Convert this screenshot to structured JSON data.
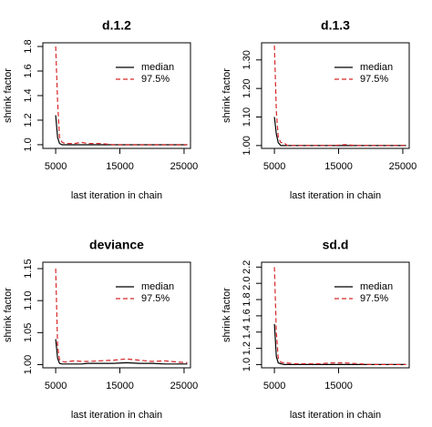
{
  "chart_data": [
    {
      "type": "line",
      "title": "d.1.2",
      "xlabel": "last iteration in chain",
      "ylabel": "shrink factor",
      "legend": "topright",
      "x": [
        5000,
        5300,
        5600,
        6000,
        6500,
        7000,
        8000,
        9000,
        10000,
        12000,
        14000,
        16000,
        18000,
        20000,
        22000,
        24000,
        25500
      ],
      "xlim": [
        3000,
        26000
      ],
      "xticks": [
        5000,
        15000,
        25000
      ],
      "ylim": [
        0.97,
        1.83
      ],
      "yticks": [
        {
          "value": 1,
          "label": "1.0"
        },
        1.2,
        1.4,
        1.6,
        1.8
      ],
      "series": [
        {
          "name": "median",
          "color": "#000000",
          "dash": false,
          "values": [
            1.24,
            1.06,
            1.01,
            1.0,
            1.0,
            1.0,
            1.0,
            1.0,
            1.0,
            1.0,
            1.0,
            1.0,
            1.0,
            1.0,
            1.0,
            1.0,
            1.0
          ]
        },
        {
          "name": "97.5%",
          "color": "#d62728",
          "dash": true,
          "values": [
            1.8,
            1.35,
            1.06,
            1.02,
            1.01,
            1.01,
            1.01,
            1.02,
            1.01,
            1.01,
            1.0,
            1.0,
            1.0,
            1.0,
            1.0,
            1.0,
            1.0
          ]
        }
      ]
    },
    {
      "type": "line",
      "title": "d.1.3",
      "xlabel": "last iteration in chain",
      "ylabel": "shrink factor",
      "legend": "topright",
      "x": [
        5000,
        5300,
        5600,
        6000,
        6500,
        7000,
        8000,
        9000,
        10000,
        12000,
        14000,
        16000,
        18000,
        20000,
        22000,
        24000,
        25500
      ],
      "xlim": [
        3000,
        26000
      ],
      "xticks": [
        5000,
        15000,
        25000
      ],
      "ylim": [
        0.99,
        1.36
      ],
      "yticks": [
        {
          "value": 1,
          "label": "1.00"
        },
        {
          "value": 1.1,
          "label": "1.10"
        },
        {
          "value": 1.2,
          "label": "1.20"
        },
        {
          "value": 1.3,
          "label": "1.30"
        }
      ],
      "series": [
        {
          "name": "median",
          "color": "#000000",
          "dash": false,
          "values": [
            1.1,
            1.04,
            1.01,
            1.0,
            1.0,
            1.0,
            1.0,
            1.0,
            1.0,
            1.0,
            1.0,
            1.0,
            1.0,
            1.0,
            1.0,
            1.0,
            1.0
          ]
        },
        {
          "name": "97.5%",
          "color": "#d62728",
          "dash": true,
          "values": [
            1.35,
            1.12,
            1.03,
            1.01,
            1.01,
            1.0,
            1.0,
            1.0,
            1.0,
            1.0,
            1.0,
            1.003,
            1.0,
            1.0,
            1.0,
            1.0,
            1.0
          ]
        }
      ]
    },
    {
      "type": "line",
      "title": "deviance",
      "xlabel": "last iteration in chain",
      "ylabel": "shrink factor",
      "legend": "topright",
      "x": [
        5000,
        5300,
        5600,
        6000,
        6500,
        7000,
        8000,
        9000,
        10000,
        12000,
        14000,
        16000,
        18000,
        20000,
        22000,
        24000,
        25500
      ],
      "xlim": [
        3000,
        26000
      ],
      "xticks": [
        5000,
        15000,
        25000
      ],
      "ylim": [
        0.995,
        1.16
      ],
      "yticks": [
        {
          "value": 1,
          "label": "1.00"
        },
        1.05,
        {
          "value": 1.1,
          "label": "1.10"
        },
        1.15
      ],
      "series": [
        {
          "name": "median",
          "color": "#000000",
          "dash": false,
          "values": [
            1.04,
            1.01,
            1.002,
            1.001,
            1.001,
            1.001,
            1.001,
            1.001,
            1.002,
            1.002,
            1.002,
            1.003,
            1.002,
            1.002,
            1.001,
            1.001,
            1.001
          ]
        },
        {
          "name": "97.5%",
          "color": "#d62728",
          "dash": true,
          "values": [
            1.15,
            1.03,
            1.008,
            1.005,
            1.004,
            1.005,
            1.006,
            1.005,
            1.005,
            1.006,
            1.007,
            1.009,
            1.007,
            1.005,
            1.006,
            1.004,
            1.003
          ]
        }
      ]
    },
    {
      "type": "line",
      "title": "sd.d",
      "xlabel": "last iteration in chain",
      "ylabel": "shrink factor",
      "legend": "topright",
      "x": [
        5000,
        5300,
        5600,
        6000,
        6500,
        7000,
        8000,
        9000,
        10000,
        12000,
        14000,
        16000,
        18000,
        20000,
        22000,
        24000,
        25500
      ],
      "xlim": [
        3000,
        26000
      ],
      "xticks": [
        5000,
        15000
      ],
      "ylim": [
        0.96,
        2.26
      ],
      "yticks": [
        {
          "value": 1,
          "label": "1.0"
        },
        1.2,
        1.4,
        1.6,
        1.8,
        {
          "value": 2,
          "label": "2.0"
        },
        2.2
      ],
      "series": [
        {
          "name": "median",
          "color": "#000000",
          "dash": false,
          "values": [
            1.5,
            1.1,
            1.02,
            1.01,
            1.0,
            1.0,
            1.0,
            1.0,
            1.0,
            1.0,
            1.0,
            1.0,
            1.0,
            1.0,
            1.0,
            1.0,
            1.0
          ]
        },
        {
          "name": "97.5%",
          "color": "#d62728",
          "dash": true,
          "values": [
            2.2,
            1.4,
            1.08,
            1.03,
            1.02,
            1.02,
            1.01,
            1.01,
            1.01,
            1.01,
            1.02,
            1.02,
            1.01,
            1.0,
            1.0,
            1.0,
            1.0
          ]
        }
      ]
    }
  ]
}
